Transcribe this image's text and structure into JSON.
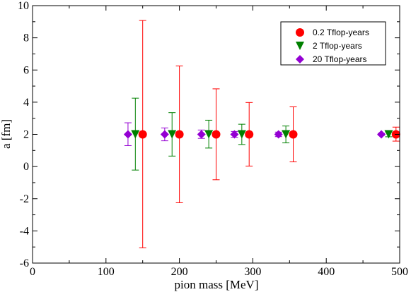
{
  "chart_data": {
    "type": "scatter",
    "title": "",
    "xlabel": "pion mass [MeV]",
    "ylabel": "a [fm]",
    "xlim": [
      0,
      500
    ],
    "ylim": [
      -6,
      10
    ],
    "xticks": [
      0,
      100,
      200,
      300,
      400,
      500
    ],
    "yticks": [
      -6,
      -4,
      -2,
      0,
      2,
      4,
      6,
      8,
      10
    ],
    "grid": false,
    "legend_position": "top-right",
    "series": [
      {
        "name": "0.2 Tflop-years",
        "marker": "circle",
        "color": "#ff0000",
        "points": [
          {
            "x": 150,
            "y": 2,
            "ylow": -5.05,
            "yhigh": 9.08
          },
          {
            "x": 200,
            "y": 2,
            "ylow": -2.25,
            "yhigh": 6.25
          },
          {
            "x": 250,
            "y": 2,
            "ylow": -0.82,
            "yhigh": 4.83
          },
          {
            "x": 295,
            "y": 2,
            "ylow": 0.03,
            "yhigh": 3.98
          },
          {
            "x": 355,
            "y": 2,
            "ylow": 0.29,
            "yhigh": 3.71
          },
          {
            "x": 495,
            "y": 2,
            "ylow": 1.58,
            "yhigh": 2.45
          }
        ]
      },
      {
        "name": "2 Tflop-years",
        "marker": "triangle-down",
        "color": "#008000",
        "points": [
          {
            "x": 140,
            "y": 2,
            "ylow": -0.22,
            "yhigh": 4.25
          },
          {
            "x": 190,
            "y": 2,
            "ylow": 0.65,
            "yhigh": 3.35
          },
          {
            "x": 240,
            "y": 2,
            "ylow": 1.15,
            "yhigh": 2.88
          },
          {
            "x": 285,
            "y": 2,
            "ylow": 1.37,
            "yhigh": 2.63
          },
          {
            "x": 345,
            "y": 2,
            "ylow": 1.47,
            "yhigh": 2.52
          },
          {
            "x": 485,
            "y": 2,
            "ylow": 1.85,
            "yhigh": 2.15
          }
        ]
      },
      {
        "name": "20 Tflop-years",
        "marker": "diamond",
        "color": "#9400d3",
        "points": [
          {
            "x": 130,
            "y": 2,
            "ylow": 1.3,
            "yhigh": 2.72
          },
          {
            "x": 180,
            "y": 2,
            "ylow": 1.6,
            "yhigh": 2.4
          },
          {
            "x": 230,
            "y": 2,
            "ylow": 1.75,
            "yhigh": 2.27
          },
          {
            "x": 275,
            "y": 2,
            "ylow": 1.82,
            "yhigh": 2.18
          },
          {
            "x": 335,
            "y": 2,
            "ylow": 1.86,
            "yhigh": 2.14
          },
          {
            "x": 475,
            "y": 2,
            "ylow": 1.94,
            "yhigh": 2.06
          }
        ]
      }
    ]
  }
}
